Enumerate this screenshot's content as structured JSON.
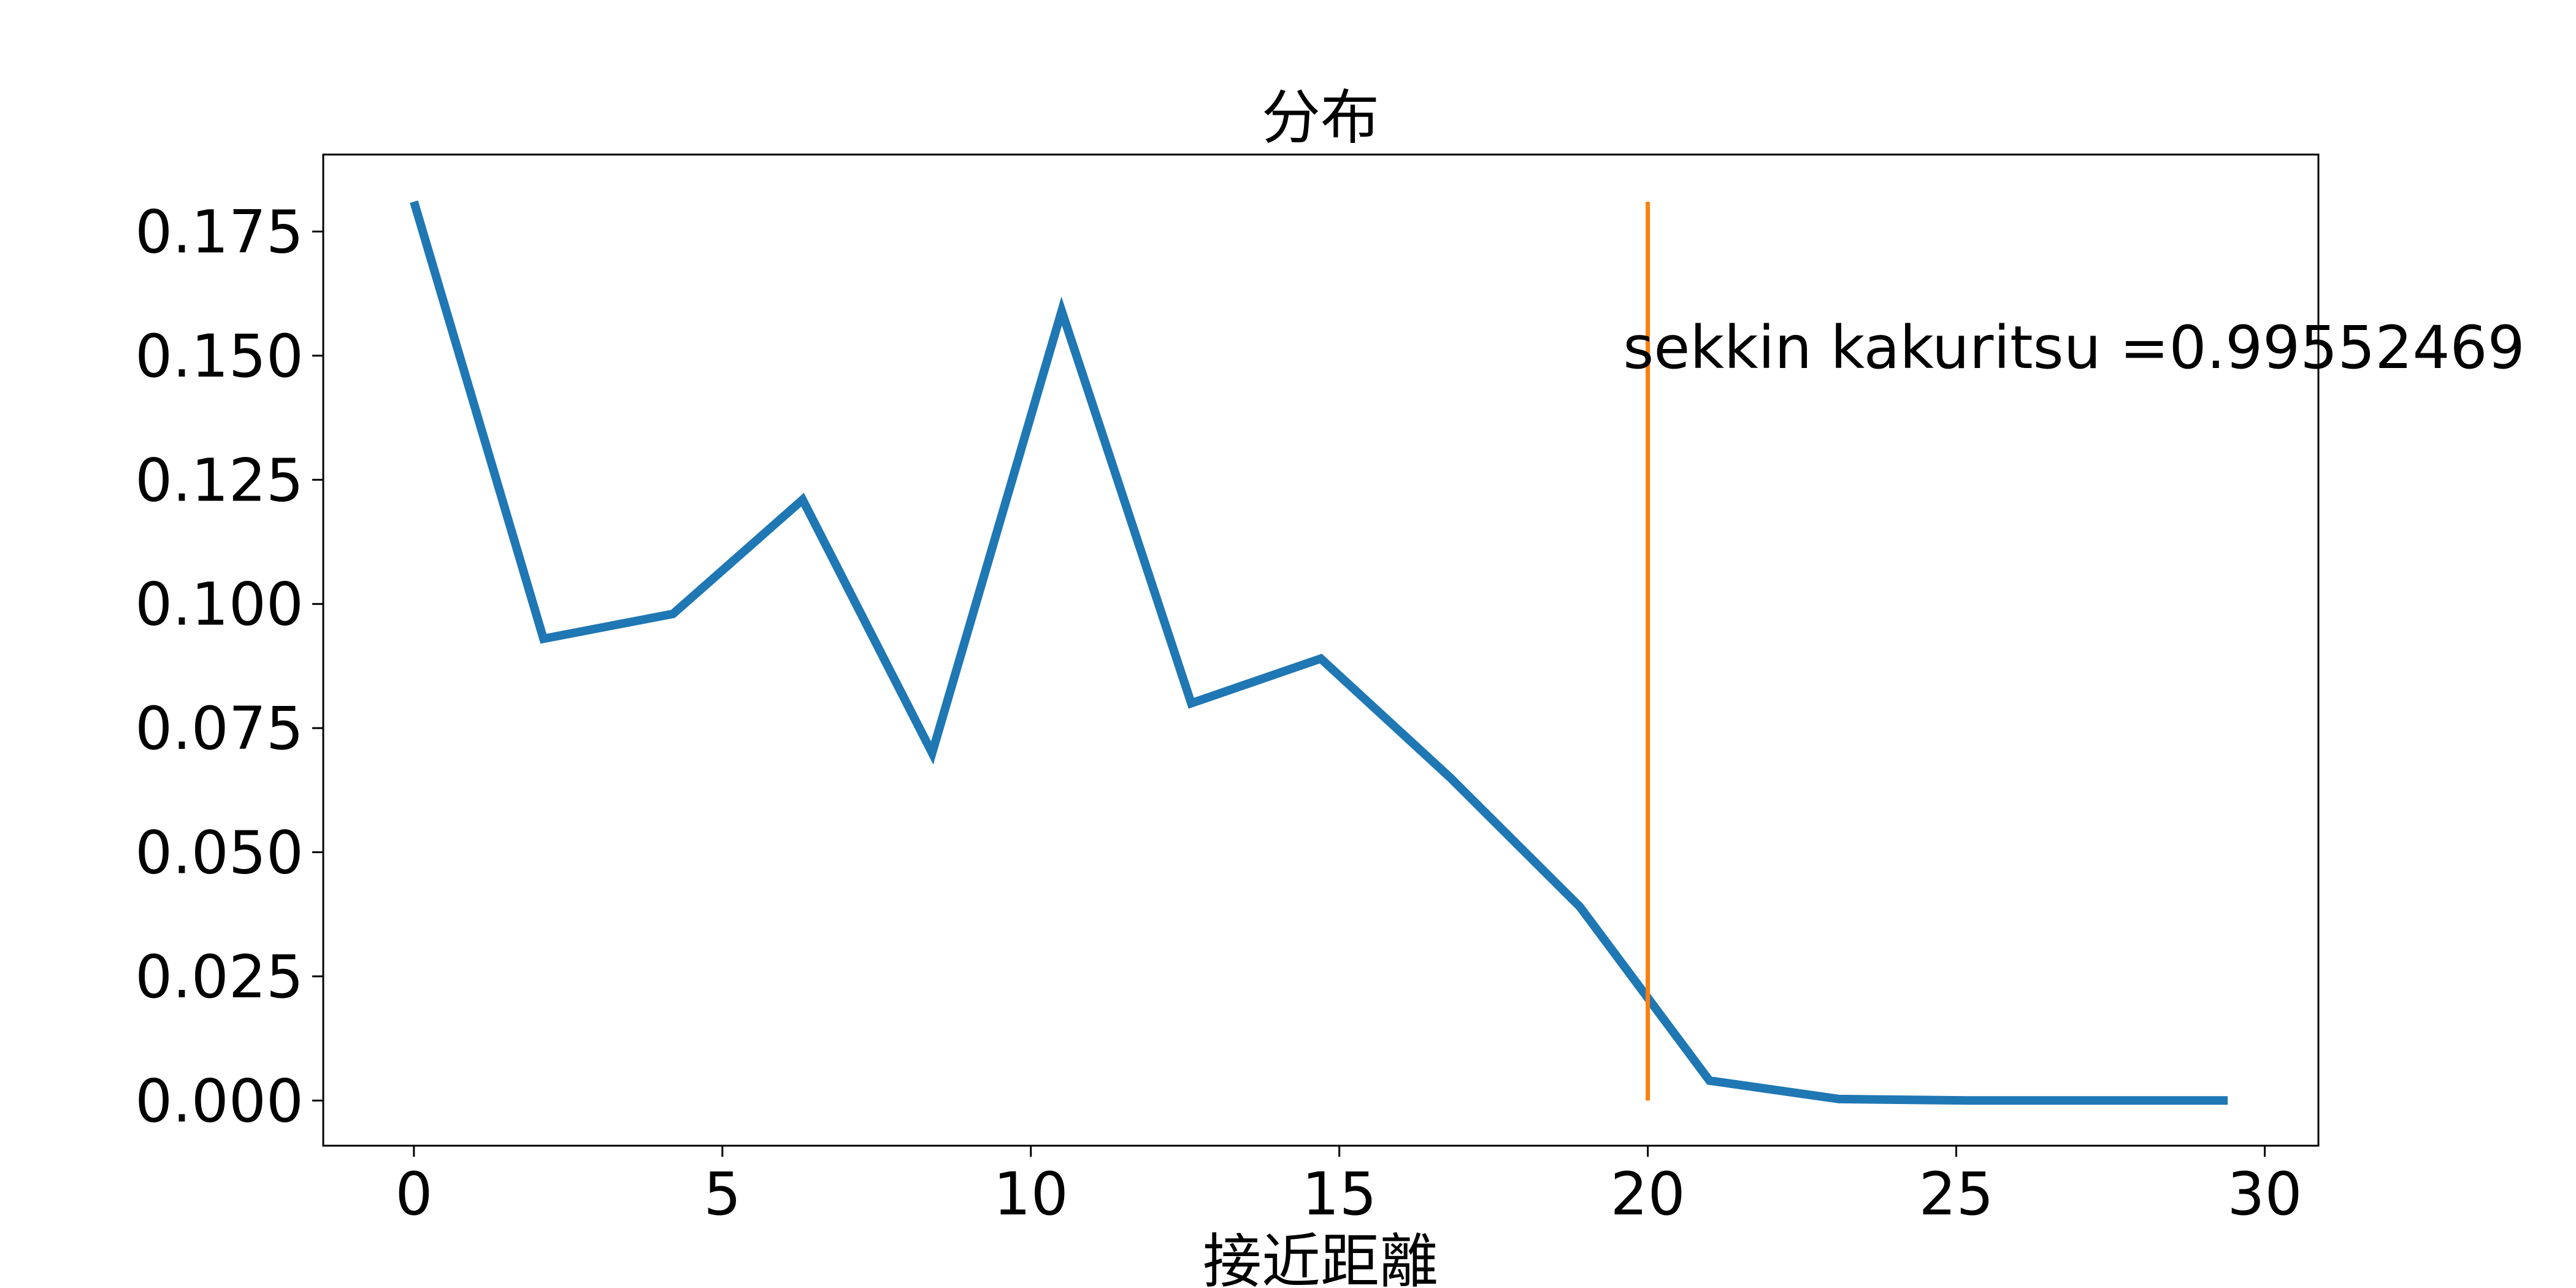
{
  "chart_data": {
    "type": "line",
    "title": "分布",
    "xlabel": "接近距離",
    "ylabel": "",
    "xlim": [
      -1.47,
      30.87
    ],
    "ylim": [
      -0.0091,
      0.1905
    ],
    "xticks": [
      0,
      5,
      10,
      15,
      20,
      25,
      30
    ],
    "yticks": [
      0.0,
      0.025,
      0.05,
      0.075,
      0.1,
      0.125,
      0.15,
      0.175
    ],
    "xtick_labels": [
      "0",
      "5",
      "10",
      "15",
      "20",
      "25",
      "30"
    ],
    "ytick_labels": [
      "0.000",
      "0.025",
      "0.050",
      "0.075",
      "0.100",
      "0.125",
      "0.150",
      "0.175"
    ],
    "grid": false,
    "series": [
      {
        "color": "#1f77b4",
        "x": [
          0,
          2.1,
          4.2,
          6.3,
          8.4,
          10.5,
          12.6,
          14.7,
          16.8,
          18.9,
          21.0,
          23.1,
          25.2,
          27.3,
          29.4
        ],
        "y": [
          0.181,
          0.093,
          0.098,
          0.121,
          0.07,
          0.159,
          0.08,
          0.089,
          0.065,
          0.039,
          0.004,
          0.0003,
          0.0,
          0.0,
          0.0
        ]
      }
    ],
    "vline": {
      "x": 20,
      "y_from": 0,
      "y_to": 0.181,
      "color": "#ff7f0e"
    },
    "annotation": {
      "text": "sekkin kakuritsu =0.99552469",
      "x": 19.6,
      "y": 0.1475
    }
  }
}
